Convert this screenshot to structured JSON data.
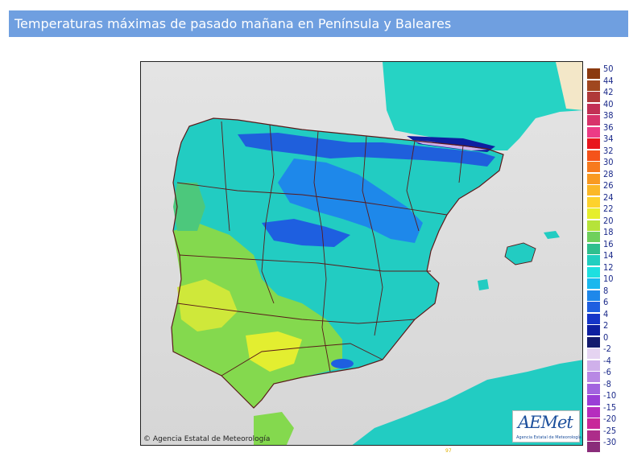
{
  "header": {
    "title": "Temperaturas máximas de pasado mañana en Península y Baleares"
  },
  "map": {
    "copyright": "© Agencia Estatal de Meteorología",
    "logo_text": "AEMet",
    "logo_subtitle": "Agencia Estatal de Meteorología",
    "bottom_mark": "97"
  },
  "legend": {
    "items": [
      {
        "label": "50",
        "color": "#8b3a0f"
      },
      {
        "label": "44",
        "color": "#a0471f"
      },
      {
        "label": "42",
        "color": "#b03a3a"
      },
      {
        "label": "40",
        "color": "#c23055"
      },
      {
        "label": "38",
        "color": "#d8336b"
      },
      {
        "label": "36",
        "color": "#ec3b86"
      },
      {
        "label": "34",
        "color": "#e8161d"
      },
      {
        "label": "32",
        "color": "#f5531a"
      },
      {
        "label": "30",
        "color": "#f77a1e"
      },
      {
        "label": "28",
        "color": "#f99a22"
      },
      {
        "label": "26",
        "color": "#fbb828"
      },
      {
        "label": "24",
        "color": "#fdd22d"
      },
      {
        "label": "22",
        "color": "#e6ee2d"
      },
      {
        "label": "20",
        "color": "#b6e33a"
      },
      {
        "label": "18",
        "color": "#6fd05c"
      },
      {
        "label": "16",
        "color": "#2fbf8e"
      },
      {
        "label": "14",
        "color": "#21cfc0"
      },
      {
        "label": "12",
        "color": "#1ee0e0"
      },
      {
        "label": "10",
        "color": "#19b8ee"
      },
      {
        "label": "8",
        "color": "#1e88ea"
      },
      {
        "label": "6",
        "color": "#1e5fe0"
      },
      {
        "label": "4",
        "color": "#1535c8"
      },
      {
        "label": "2",
        "color": "#0e1fa0"
      },
      {
        "label": "0",
        "color": "#141a6e"
      },
      {
        "label": "-2",
        "color": "#e5d4f1"
      },
      {
        "label": "-4",
        "color": "#cfb0ea"
      },
      {
        "label": "-6",
        "color": "#b888e4"
      },
      {
        "label": "-8",
        "color": "#a264df"
      },
      {
        "label": "-10",
        "color": "#9a3ed6"
      },
      {
        "label": "-15",
        "color": "#b62dbe"
      },
      {
        "label": "-20",
        "color": "#c8289a"
      },
      {
        "label": "-25",
        "color": "#ad2d8a"
      },
      {
        "label": "-30",
        "color": "#8a2c7a"
      }
    ]
  }
}
